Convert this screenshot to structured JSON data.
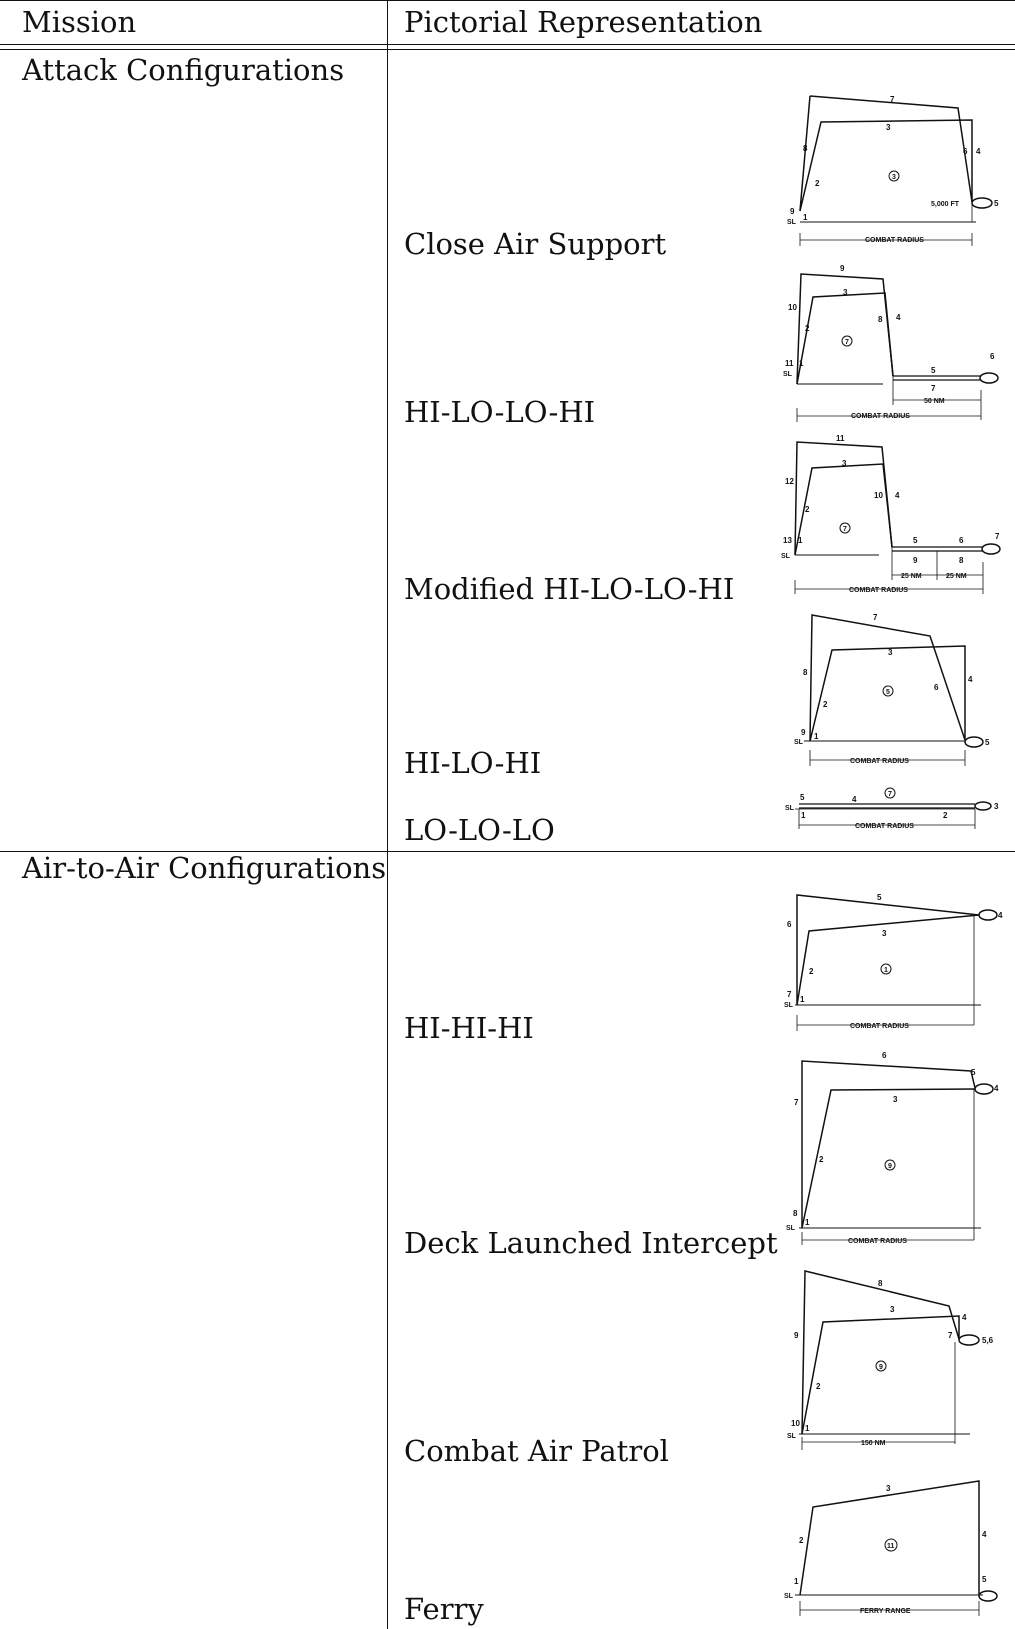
{
  "table": {
    "headers": {
      "mission": "Mission",
      "pictorial": "Pictorial Representation"
    },
    "sections": [
      {
        "title": "Attack Configurations",
        "missions": [
          "Close Air Support",
          "HI-LO-LO-HI",
          "Modified HI-LO-LO-HI",
          "HI-LO-HI",
          "LO-LO-LO"
        ]
      },
      {
        "title": "Air-to-Air Configurations",
        "missions": [
          "HI-HI-HI",
          "Deck Launched Intercept",
          "Combat Air Patrol",
          "Ferry"
        ]
      }
    ]
  },
  "diagrams": {
    "close_air_support": {
      "points": [
        "7",
        "3",
        "8",
        "6",
        "4",
        "2",
        "9",
        "1",
        "5"
      ],
      "center": "3",
      "sl": "SL",
      "altitude": "5,000 FT",
      "span": "COMBAT RADIUS"
    },
    "hi_lo_lo_hi": {
      "points": [
        "9",
        "3",
        "10",
        "8",
        "4",
        "2",
        "11",
        "1",
        "5",
        "6",
        "7"
      ],
      "center": "7",
      "sl": "SL",
      "sub_span": "50 NM",
      "span": "COMBAT RADIUS"
    },
    "modified_hi_lo_lo_hi": {
      "points": [
        "11",
        "3",
        "12",
        "10",
        "4",
        "2",
        "13",
        "1",
        "5",
        "6",
        "7",
        "9",
        "8"
      ],
      "center": "7",
      "sl": "SL",
      "sub_span_1": "25 NM",
      "sub_span_2": "25 NM",
      "span": "COMBAT RADIUS"
    },
    "hi_lo_hi": {
      "points": [
        "7",
        "3",
        "8",
        "6",
        "4",
        "2",
        "9",
        "1",
        "5"
      ],
      "center": "5",
      "sl": "SL",
      "span": "COMBAT RADIUS"
    },
    "lo_lo_lo": {
      "points": [
        "5",
        "4",
        "1",
        "2",
        "3"
      ],
      "center": "7",
      "sl": "SL",
      "span": "COMBAT RADIUS"
    },
    "hi_hi_hi": {
      "points": [
        "5",
        "4",
        "6",
        "3",
        "2",
        "7",
        "1"
      ],
      "center": "1",
      "sl": "SL",
      "span": "COMBAT RADIUS"
    },
    "deck_launched_intercept": {
      "points": [
        "6",
        "5",
        "4",
        "7",
        "3",
        "2",
        "8",
        "1"
      ],
      "center": "9",
      "sl": "SL",
      "span": "COMBAT RADIUS"
    },
    "combat_air_patrol": {
      "points": [
        "8",
        "3",
        "4",
        "9",
        "7",
        "5,6",
        "2",
        "10",
        "1"
      ],
      "center": "9",
      "sl": "SL",
      "span": "150 NM"
    },
    "ferry": {
      "points": [
        "3",
        "2",
        "4",
        "1",
        "5"
      ],
      "center": "11",
      "sl": "SL",
      "span": "FERRY RANGE"
    }
  }
}
